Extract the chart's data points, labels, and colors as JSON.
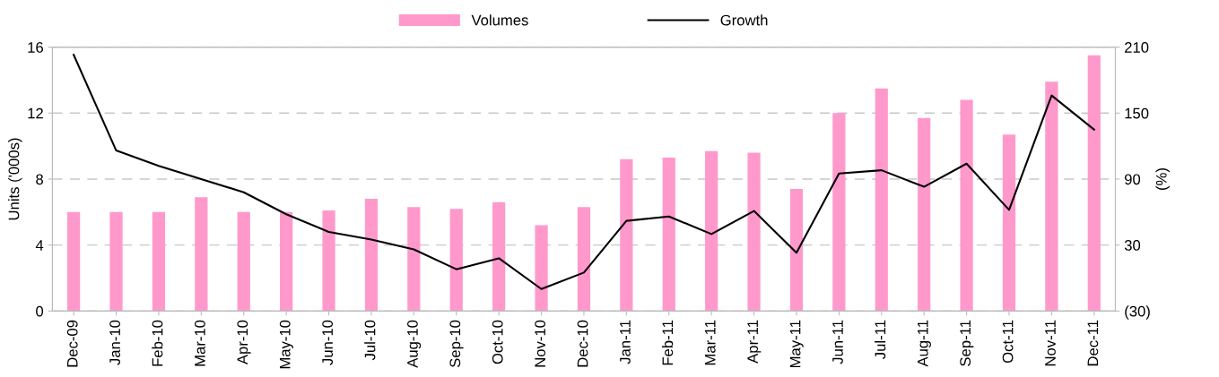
{
  "chart_data": {
    "type": "bar",
    "categories": [
      "Dec-09",
      "Jan-10",
      "Feb-10",
      "Mar-10",
      "Apr-10",
      "May-10",
      "Jun-10",
      "Jul-10",
      "Aug-10",
      "Sep-10",
      "Oct-10",
      "Nov-10",
      "Dec-10",
      "Jan-11",
      "Feb-11",
      "Mar-11",
      "Apr-11",
      "May-11",
      "Jun-11",
      "Jul-11",
      "Aug-11",
      "Sep-11",
      "Oct-11",
      "Nov-11",
      "Dec-11"
    ],
    "series": [
      {
        "name": "Volumes",
        "color": "#ff99cc",
        "values": [
          6.0,
          6.0,
          6.0,
          6.9,
          6.0,
          6.0,
          6.1,
          6.8,
          6.3,
          6.2,
          6.6,
          5.2,
          6.3,
          9.2,
          9.3,
          9.7,
          9.6,
          7.4,
          12.0,
          13.5,
          11.7,
          12.8,
          10.7,
          13.9,
          15.5
        ]
      },
      {
        "name": "Growth",
        "type": "line",
        "axis": "y2",
        "color": "#000000",
        "values": [
          203,
          116,
          102,
          90,
          78,
          58,
          42,
          35,
          26,
          8,
          18,
          -10,
          5,
          52,
          56,
          40,
          61,
          23,
          95,
          98,
          83,
          104,
          62,
          166,
          135
        ]
      }
    ],
    "ylabel": "Units ('000s)",
    "y2label": "(%)",
    "ylim": [
      0,
      16
    ],
    "yticks": [
      0,
      4,
      8,
      12,
      16
    ],
    "y2lim": [
      -30,
      210
    ],
    "y2ticks": [
      {
        "value": -30,
        "label": "(30)"
      },
      30,
      90,
      150,
      210
    ],
    "grid": "y",
    "legend": "top"
  }
}
